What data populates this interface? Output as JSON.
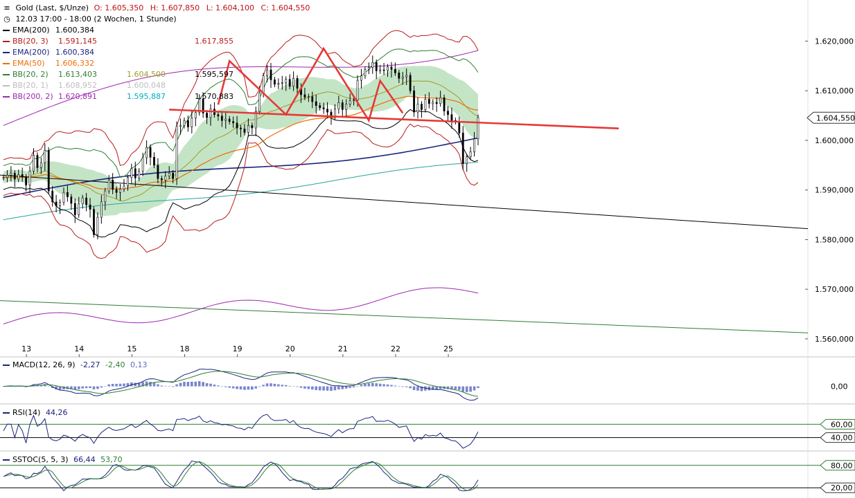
{
  "header": {
    "icon": "candlestick-chart-icon",
    "instrument": "Gold (Last, $/Unze)",
    "open": "O: 1.605,350",
    "high": "H: 1.607,850",
    "low": "L: 1.604,100",
    "close": "C: 1.604,550",
    "time_icon": "clock-icon",
    "period": "12.03 17:00 - 18:00 (2 Wochen, 1 Stunde)"
  },
  "legend": [
    {
      "label": "EMA(200)",
      "values": [
        "1.600,384"
      ],
      "color": "#000000",
      "vcolors": [
        "#000000"
      ]
    },
    {
      "label": "BB(20, 3)",
      "values": [
        "1.617,855",
        "1.591,145"
      ],
      "color": "#b71c1c",
      "vcolors": [
        "#b71c1c",
        "#b71c1c"
      ]
    },
    {
      "label": "EMA(200)",
      "values": [
        "1.600,384"
      ],
      "color": "#1a237e",
      "vcolors": [
        "#1a237e"
      ]
    },
    {
      "label": "EMA(50)",
      "values": [
        "1.606,332"
      ],
      "color": "#ef6c00",
      "vcolors": [
        "#ef6c00"
      ]
    },
    {
      "label": "BB(20, 2)",
      "values": [
        "1.613,403",
        "1.604,500",
        "1.595,597"
      ],
      "color": "#2e7d32",
      "vcolors": [
        "#2e7d32",
        "#9e9d24",
        "#000000"
      ]
    },
    {
      "label": "BB(20, 1)",
      "values": [
        "1.608,952",
        "1.600,048"
      ],
      "color": "#bdbdbd",
      "vcolors": [
        "#bdbdbd",
        "#bdbdbd"
      ]
    },
    {
      "label": "BB(200, 2)",
      "values": [
        "1.620,891",
        "1.595,887",
        "1.570,883"
      ],
      "color": "#9c27b0",
      "vcolors": [
        "#9c27b0",
        "#00acc1",
        "#000000"
      ]
    }
  ],
  "chart_data": {
    "type": "candlestick",
    "y_axis": {
      "range": [
        1556500,
        1625500
      ],
      "ticks": [
        {
          "value": 1620000,
          "label": "1.620,000"
        },
        {
          "value": 1610000,
          "label": "1.610,000"
        },
        {
          "value": 1600000,
          "label": "1.600,000"
        },
        {
          "value": 1590000,
          "label": "1.590,000"
        },
        {
          "value": 1580000,
          "label": "1.580,000"
        },
        {
          "value": 1570000,
          "label": "1.570,000"
        },
        {
          "value": 1560000,
          "label": "1.560,000"
        }
      ],
      "last_price": 1604550,
      "last_price_label": "1.604,550"
    },
    "x_axis": {
      "labels": [
        "13",
        "14",
        "15",
        "18",
        "19",
        "20",
        "21",
        "22",
        "25"
      ],
      "label_idx": [
        5,
        19,
        33,
        47,
        61,
        75,
        89,
        103,
        117
      ]
    },
    "n_bars": 127,
    "close": [
      1592.5,
      1593.0,
      1593.4,
      1592.2,
      1593.1,
      1592.6,
      1591.0,
      1593.8,
      1597.0,
      1594.5,
      1595.5,
      1598.0,
      1589.8,
      1587.6,
      1586.8,
      1587.5,
      1589.5,
      1588.6,
      1587.3,
      1585.0,
      1587.2,
      1588.4,
      1587.0,
      1586.1,
      1581.0,
      1584.5,
      1587.6,
      1589.8,
      1592.0,
      1590.1,
      1589.5,
      1590.2,
      1590.8,
      1592.5,
      1594.3,
      1592.4,
      1593.8,
      1596.5,
      1598.6,
      1596.6,
      1595.0,
      1592.3,
      1592.0,
      1592.8,
      1593.4,
      1592.3,
      1602.8,
      1603.0,
      1604.0,
      1602.7,
      1604.5,
      1605.6,
      1608.3,
      1605.5,
      1604.6,
      1606.3,
      1605.2,
      1604.9,
      1604.0,
      1604.3,
      1603.8,
      1603.5,
      1602.5,
      1602.3,
      1601.6,
      1603.0,
      1602.5,
      1605.8,
      1609.6,
      1613.0,
      1614.2,
      1612.2,
      1611.3,
      1611.5,
      1611.6,
      1612.3,
      1610.9,
      1612.5,
      1610.5,
      1609.2,
      1608.7,
      1608.8,
      1607.8,
      1607.0,
      1606.6,
      1606.3,
      1605.7,
      1604.8,
      1606.3,
      1607.6,
      1606.2,
      1607.3,
      1608.0,
      1608.1,
      1612.1,
      1613.0,
      1614.3,
      1614.7,
      1615.7,
      1614.0,
      1614.2,
      1614.1,
      1614.8,
      1614.3,
      1613.6,
      1612.5,
      1612.8,
      1613.1,
      1610.0,
      1605.7,
      1607.3,
      1606.2,
      1608.3,
      1607.4,
      1607.7,
      1607.4,
      1608.6,
      1605.9,
      1605.2,
      1604.0,
      1603.8,
      1601.5,
      1595.3,
      1596.7,
      1597.7,
      1600.3,
      1604.6
    ],
    "candle_width": 2.2,
    "series": [],
    "overlays": {
      "black_trendline_values": [
        1593.0,
        1582.2
      ],
      "green_trendline_values": [
        1567.7,
        1561.2
      ],
      "neckline_values": [
        1606.2,
        1602.4
      ]
    },
    "subpanels": [
      {
        "name": "MACD",
        "label": "MACD(12, 26, 9)",
        "values": [
          "-2,27",
          "-2,40",
          "0,13"
        ],
        "value_colors": [
          "#1a237e",
          "#2e7d32",
          "#7986cb"
        ],
        "ticks": [
          {
            "value": 0,
            "label": "0,00"
          }
        ],
        "range": [
          -4,
          4.5
        ]
      },
      {
        "name": "RSI",
        "label": "RSI(14)",
        "values": [
          "44,26"
        ],
        "value_colors": [
          "#1a237e"
        ],
        "ticks": [
          {
            "value": 60,
            "label": "60,00"
          },
          {
            "value": 40,
            "label": "40,00"
          }
        ],
        "range": [
          20,
          80
        ]
      },
      {
        "name": "SSTOC",
        "label": "SSTOC(5, 5, 3)",
        "values": [
          "66,44",
          "53,70"
        ],
        "value_colors": [
          "#1a237e",
          "#2e7d32"
        ],
        "ticks": [
          {
            "value": 80,
            "label": "80,00"
          },
          {
            "value": 20,
            "label": "20,00"
          }
        ],
        "range": [
          0,
          100
        ]
      }
    ],
    "colors": {
      "bb3": "#b71c1c",
      "bb2": "#2e7d32",
      "bb1_fill": "#a5d6a7",
      "ema50": "#ef6c00",
      "ema200_black": "#000000",
      "ema200_navy": "#1a237e",
      "bb200": "#9c27b0",
      "bb200_mid": "#26a69a",
      "pattern": "#e53935",
      "green_trend": "#2e7d32",
      "macd_hist": "#7986cb",
      "rsi_fill": "#ef9a9a"
    }
  }
}
